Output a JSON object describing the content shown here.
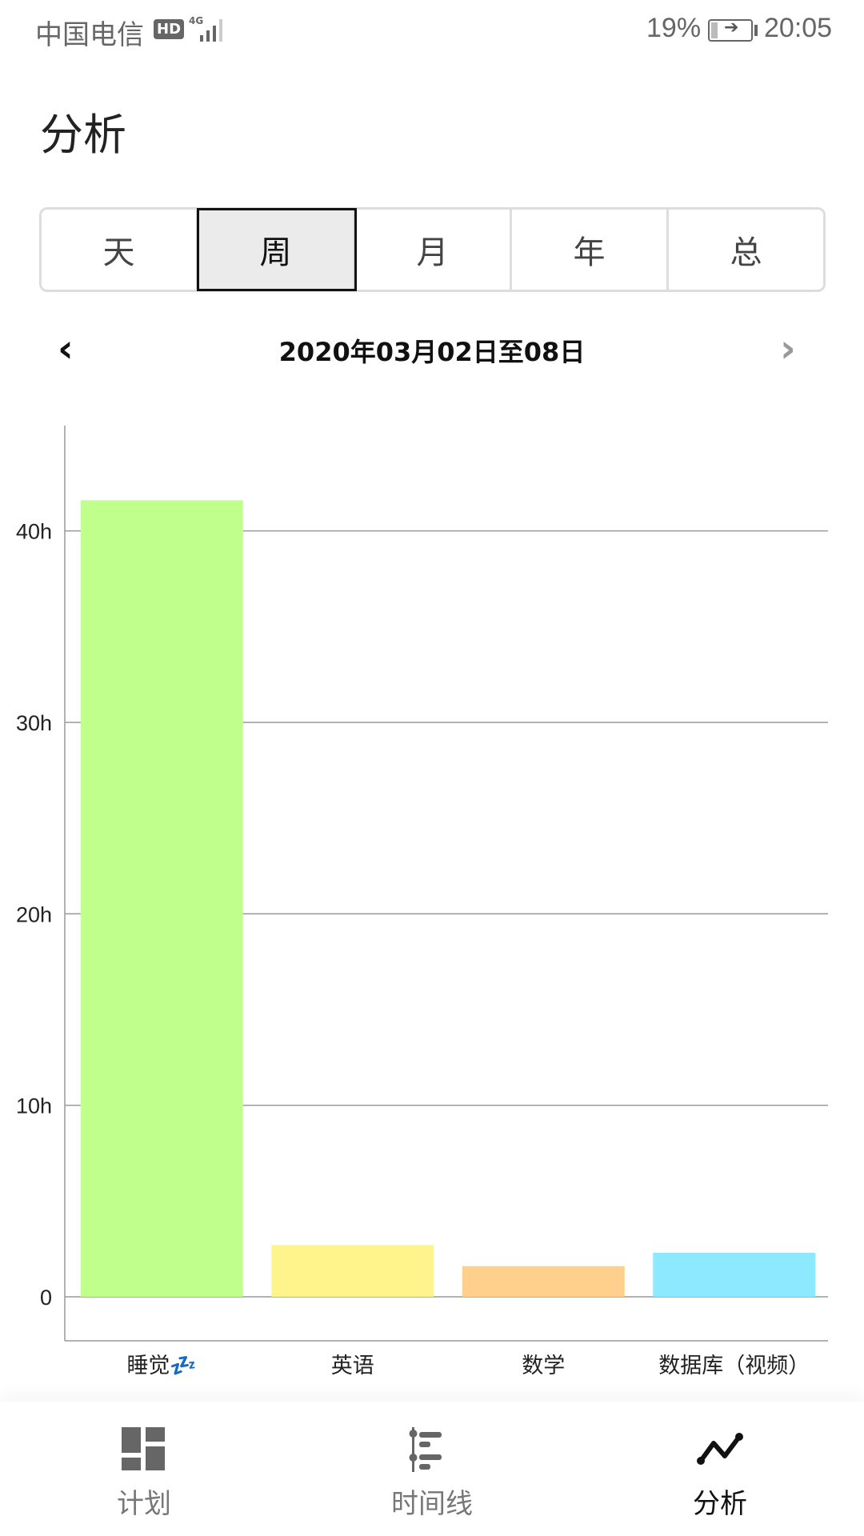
{
  "status_bar": {
    "carrier": "中国电信",
    "hd_badge": "HD",
    "network": "4G",
    "battery": "19%",
    "time": "20:05"
  },
  "page": {
    "title": "分析"
  },
  "period_tabs": {
    "items": [
      {
        "label": "天"
      },
      {
        "label": "周"
      },
      {
        "label": "月"
      },
      {
        "label": "年"
      },
      {
        "label": "总"
      }
    ],
    "selected": "周"
  },
  "date_nav": {
    "range": "2020年03月02日至08日",
    "prev_icon": "chevron-left-icon",
    "next_icon": "chevron-right-icon"
  },
  "chart_data": {
    "type": "bar",
    "categories": [
      "睡觉💤",
      "英语",
      "数学",
      "数据库（视频）"
    ],
    "values": [
      41.6,
      2.7,
      1.6,
      2.3
    ],
    "colors": [
      "#c0ff8c",
      "#fff48c",
      "#ffd08c",
      "#8ce9ff"
    ],
    "yticks": [
      "0",
      "10h",
      "20h",
      "30h",
      "40h"
    ],
    "ytick_values": [
      0,
      10,
      20,
      30,
      40
    ],
    "ylim": [
      -2.3,
      45.5
    ],
    "grid": true
  },
  "bottom_nav": {
    "items": [
      {
        "label": "计划",
        "icon": "dashboard-icon"
      },
      {
        "label": "时间线",
        "icon": "timeline-icon"
      },
      {
        "label": "分析",
        "icon": "line-chart-icon"
      }
    ],
    "active": "分析"
  }
}
